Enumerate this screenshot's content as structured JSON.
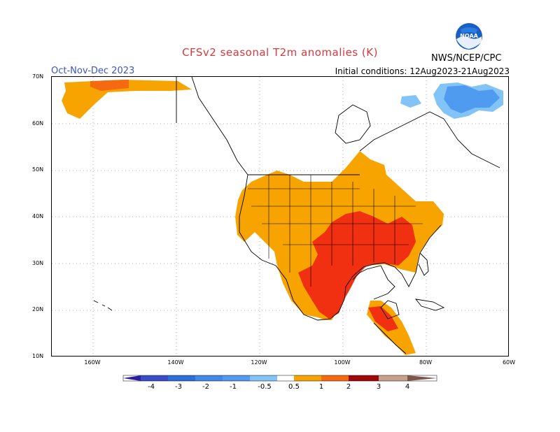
{
  "header": {
    "title": "CFSv2 seasonal T2m anomalies (K)",
    "season": "Oct-Nov-Dec 2023",
    "initial_conditions": "Initial conditions: 12Aug2023-21Aug2023",
    "agency": "NWS/NCEP/CPC",
    "logo_text": "NOAA"
  },
  "axes": {
    "lat_labels": [
      "70N",
      "60N",
      "50N",
      "40N",
      "30N",
      "20N",
      "10N"
    ],
    "lon_labels": [
      "160W",
      "140W",
      "120W",
      "100W",
      "80W",
      "60W"
    ]
  },
  "colorbar": {
    "labels": [
      "-4",
      "-3",
      "-2",
      "-1",
      "-0.5",
      "0.5",
      "1",
      "2",
      "3",
      "4"
    ],
    "colors": [
      "#2b1fa0",
      "#3b4cc8",
      "#2b6fd8",
      "#4e9bf0",
      "#82c3f8",
      "#ffffff",
      "#f8a400",
      "#f56a10",
      "#f03010",
      "#a00808",
      "#c8a08c",
      "#80564a"
    ]
  },
  "map": {
    "warm_anomaly_regions": "Central and eastern United States, Mexico, Central America, western Alaska",
    "cold_anomaly_regions": "Northern Quebec / Labrador"
  }
}
